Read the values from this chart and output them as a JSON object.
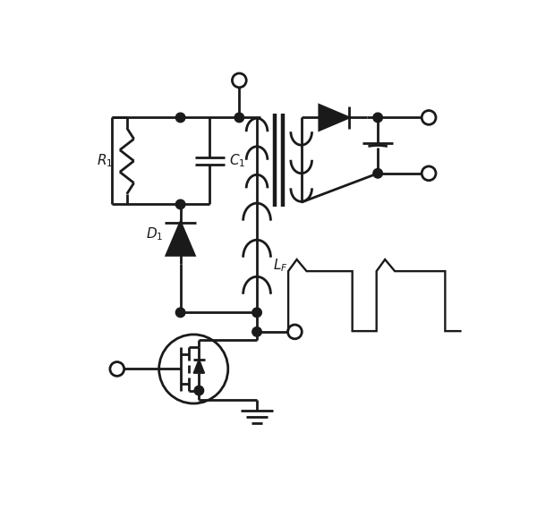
{
  "bg_color": "#ffffff",
  "line_color": "#1a1a1a",
  "lw": 2.0,
  "dot_r": 0.012,
  "open_r": 0.018
}
